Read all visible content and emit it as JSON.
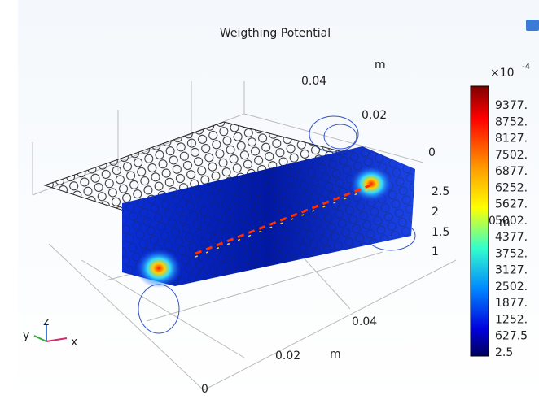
{
  "title": "Weigthing Potential",
  "top_axis": {
    "unit": "m",
    "ticks": [
      "0.04",
      "0.02",
      "0"
    ]
  },
  "z_axis": {
    "unit": "m",
    "ticks": [
      "2.5",
      "2",
      "1.5",
      "1",
      "0"
    ]
  },
  "bottom_axis": {
    "unit": "m",
    "ticks": [
      "0.04",
      "0.02",
      "0"
    ]
  },
  "colorbar": {
    "exponent_base": "×10",
    "exponent": "-4",
    "labels": [
      "9377.",
      "8752.",
      "8127.",
      "7502.",
      "6877.",
      "6252.",
      "5627.",
      "5002.",
      "4377.",
      "3752.",
      "3127.",
      "2502.",
      "1877.",
      "1252.",
      "627.5",
      "2.5"
    ]
  },
  "triad": {
    "x": "x",
    "y": "y",
    "z": "z"
  }
}
